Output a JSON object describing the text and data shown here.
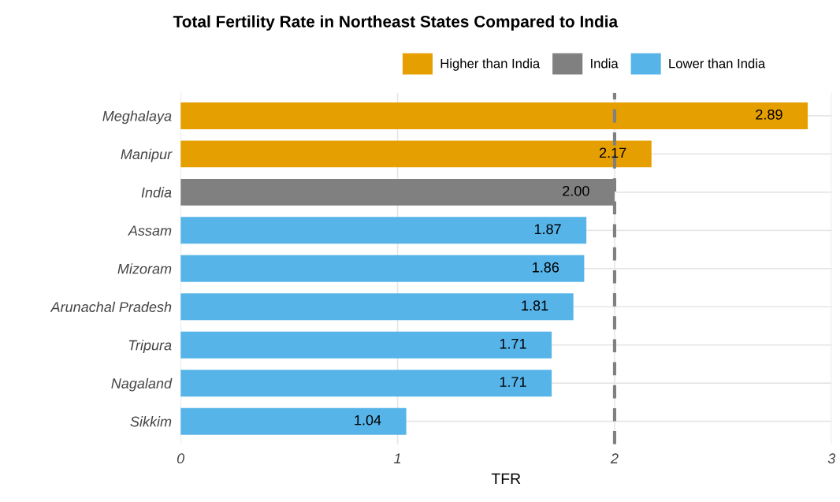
{
  "chart_data": {
    "type": "bar",
    "orientation": "horizontal",
    "title": "Total Fertility Rate in Northeast States Compared to India",
    "xlabel": "TFR",
    "categories": [
      "Meghalaya",
      "Manipur",
      "India",
      "Assam",
      "Mizoram",
      "Arunachal Pradesh",
      "Tripura",
      "Nagaland",
      "Sikkim"
    ],
    "series": [
      {
        "name": "Higher than India",
        "color": "#e69f00",
        "values": [
          2.89,
          2.17,
          null,
          null,
          null,
          null,
          null,
          null,
          null
        ],
        "value_labels": [
          "2.89",
          "2.17",
          null,
          null,
          null,
          null,
          null,
          null,
          null
        ]
      },
      {
        "name": "India",
        "color": "#808080",
        "values": [
          null,
          null,
          2.0,
          null,
          null,
          null,
          null,
          null,
          null
        ],
        "value_labels": [
          null,
          null,
          "2.00",
          null,
          null,
          null,
          null,
          null,
          null
        ]
      },
      {
        "name": "Lower than India",
        "color": "#56b4e9",
        "values": [
          null,
          null,
          null,
          1.87,
          1.86,
          1.81,
          1.71,
          1.71,
          1.04
        ],
        "value_labels": [
          null,
          null,
          null,
          "1.87",
          "1.86",
          "1.81",
          "1.71",
          "1.71",
          "1.04"
        ]
      }
    ],
    "xlim": [
      0,
      3
    ],
    "xticks": [
      0,
      1,
      2,
      3
    ],
    "grid": true,
    "legend": "top",
    "ref_lines": [
      {
        "axis": "x",
        "value": 2,
        "color": "#808080",
        "line_style": "dashed"
      }
    ]
  }
}
